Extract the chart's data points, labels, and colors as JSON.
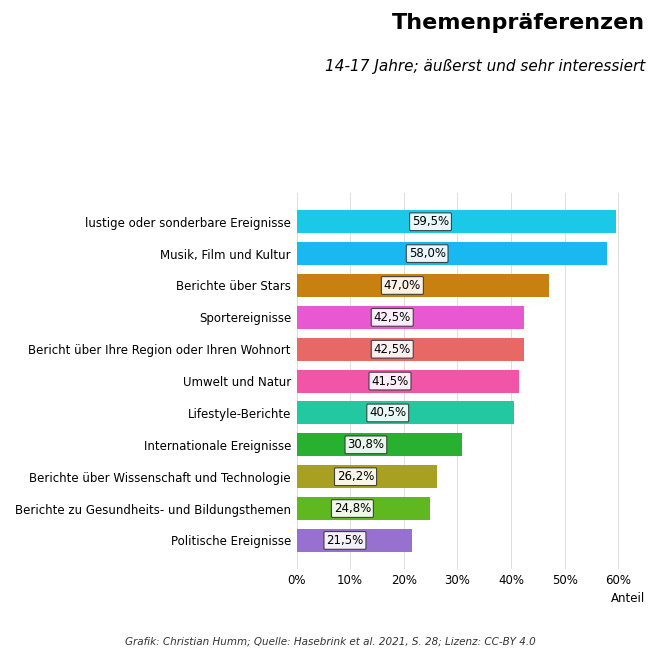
{
  "title": "Themenpräferenzen",
  "subtitle": "14-17 Jahre; äußerst und sehr interessiert",
  "caption": "Grafik: Christian Humm; Quelle: Hasebrink et al. 2021, S. 28; Lizenz: CC-BY 4.0",
  "categories": [
    "lustige oder sonderbare Ereignisse",
    "Musik, Film und Kultur",
    "Berichte über Stars",
    "Sportereignisse",
    "Bericht über Ihre Region oder Ihren Wohnort",
    "Umwelt und Natur",
    "Lifestyle-Berichte",
    "Internationale Ereignisse",
    "Berichte über Wissenschaft und Technologie",
    "Berichte zu Gesundheits- und Bildungsthemen",
    "Politische Ereignisse"
  ],
  "values": [
    59.5,
    58.0,
    47.0,
    42.5,
    42.5,
    41.5,
    40.5,
    30.8,
    26.2,
    24.8,
    21.5
  ],
  "labels": [
    "59,5%",
    "58,0%",
    "47,0%",
    "42,5%",
    "42,5%",
    "41,5%",
    "40,5%",
    "30,8%",
    "26,2%",
    "24,8%",
    "21,5%"
  ],
  "colors": [
    "#1CC8E8",
    "#1AB8F0",
    "#C88010",
    "#E858D0",
    "#E86865",
    "#F055A8",
    "#22C8A0",
    "#28B030",
    "#A8A020",
    "#60B820",
    "#9870D0"
  ],
  "xlabel": "Anteil",
  "xlim": [
    0,
    65
  ],
  "xticks": [
    0,
    10,
    20,
    30,
    40,
    50,
    60
  ],
  "xtick_labels": [
    "0%",
    "10%",
    "20%",
    "30%",
    "40%",
    "50%",
    "60%"
  ],
  "background_color": "#FFFFFF",
  "grid_color": "#DDDDDD",
  "title_fontsize": 16,
  "subtitle_fontsize": 11,
  "label_fontsize": 8.5,
  "bar_label_fontsize": 8.5,
  "caption_fontsize": 7.5
}
